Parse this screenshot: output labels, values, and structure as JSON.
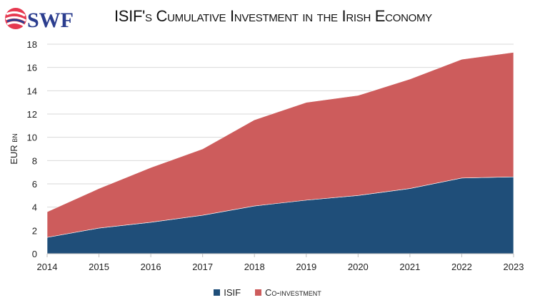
{
  "header": {
    "logo_text": "SWF",
    "title": "ISIF's Cumulative Investment in the Irish Economy"
  },
  "chart_data": {
    "type": "area",
    "stacked": true,
    "title": "ISIF's Cumulative Investment in the Irish Economy",
    "xlabel": "",
    "ylabel": "EUR bn",
    "categories": [
      "2014",
      "2015",
      "2016",
      "2017",
      "2018",
      "2019",
      "2020",
      "2021",
      "2022",
      "2023"
    ],
    "series": [
      {
        "name": "ISIF",
        "color": "#1f4e79",
        "values": [
          1.4,
          2.2,
          2.7,
          3.3,
          4.1,
          4.6,
          5.0,
          5.6,
          6.5,
          6.6
        ]
      },
      {
        "name": "Co-investment",
        "color": "#cd5c5c",
        "values": [
          2.2,
          3.4,
          4.7,
          5.7,
          7.4,
          8.4,
          8.6,
          9.4,
          10.2,
          10.7
        ]
      }
    ],
    "ylim": [
      0,
      18
    ],
    "yticks": [
      "0",
      "2",
      "4",
      "6",
      "8",
      "10",
      "12",
      "14",
      "16",
      "18"
    ],
    "grid": true,
    "legend": "bottom"
  }
}
